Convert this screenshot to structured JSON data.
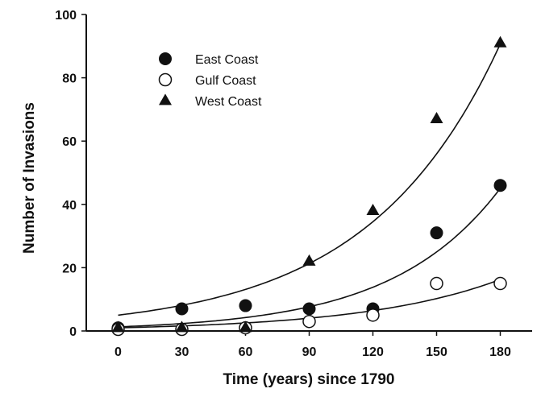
{
  "chart_data": {
    "type": "scatter",
    "xlabel": "Time (years) since 1790",
    "ylabel": "Number of Invasions",
    "xlim": [
      -15,
      195
    ],
    "ylim": [
      0,
      100
    ],
    "x_ticks": [
      0,
      30,
      60,
      90,
      120,
      150,
      180
    ],
    "y_ticks": [
      0,
      20,
      40,
      60,
      80,
      100
    ],
    "grid": false,
    "legend_position": "top-left",
    "series": [
      {
        "name": "East Coast",
        "marker": "filled-circle",
        "x": [
          0,
          30,
          60,
          90,
          120,
          150,
          180
        ],
        "y": [
          1,
          7,
          8,
          7,
          7,
          31,
          46
        ],
        "fit_curve": {
          "model": "exponential",
          "a": 1.3,
          "b": 0.0197
        }
      },
      {
        "name": "Gulf Coast",
        "marker": "open-circle",
        "x": [
          0,
          30,
          60,
          90,
          120,
          150,
          180
        ],
        "y": [
          0.5,
          0.5,
          1,
          3,
          5,
          15,
          15
        ],
        "fit_curve": {
          "model": "exponential",
          "a": 1.0,
          "b": 0.0155
        }
      },
      {
        "name": "West Coast",
        "marker": "filled-triangle",
        "x": [
          0,
          30,
          60,
          90,
          120,
          150,
          180
        ],
        "y": [
          1,
          1,
          1,
          22,
          38,
          67,
          91
        ],
        "fit_curve": {
          "model": "exponential",
          "a": 5.0,
          "b": 0.0161
        }
      }
    ]
  }
}
